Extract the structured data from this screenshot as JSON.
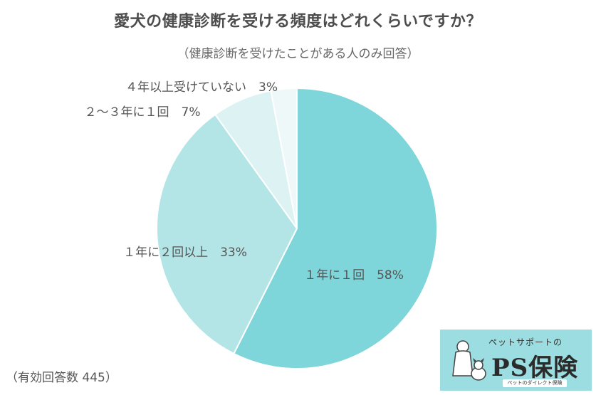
{
  "title": "愛犬の健康診断を受ける頻度はどれくらいですか？",
  "subtitle": "（健康診断を受けたことがある人のみ回答）",
  "chart_data": {
    "type": "pie",
    "start": "top, clockwise",
    "slices": [
      {
        "label": "１年に１回　58%",
        "value": 58,
        "color": "#7fd6da"
      },
      {
        "label": "１年に２回以上　33%",
        "value": 33,
        "color": "#b3e5e7"
      },
      {
        "label": "２～３年に１回　7%",
        "value": 7,
        "color": "#dcf2f3"
      },
      {
        "label": "４年以上受けていない　3%",
        "value": 3,
        "color": "#eef8f9"
      }
    ]
  },
  "respondents": "（有効回答数 445）",
  "logo": {
    "tagline": "ペットサポートの",
    "brand": "PS保険",
    "sub": "ペットのダイレクト保険",
    "icon": "dog-and-owner-icon",
    "color": "#9bdde0"
  }
}
